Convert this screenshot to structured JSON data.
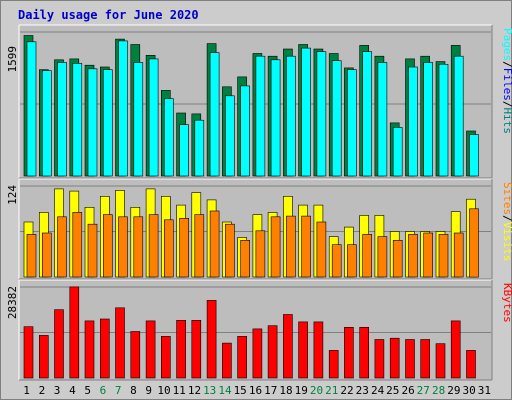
{
  "chart_data": {
    "type": "bar",
    "title": "Daily usage for June 2020",
    "categories": [
      "1",
      "2",
      "3",
      "4",
      "5",
      "6",
      "7",
      "8",
      "9",
      "10",
      "11",
      "12",
      "13",
      "14",
      "15",
      "16",
      "17",
      "18",
      "19",
      "20",
      "21",
      "22",
      "23",
      "24",
      "25",
      "26",
      "27",
      "28",
      "29",
      "30",
      "31"
    ],
    "weekend_days": [
      6,
      7,
      13,
      14,
      20,
      21,
      27,
      28
    ],
    "panels": [
      {
        "id": "hits-files-pages",
        "ytick": "1599",
        "ylim": [
          0,
          1599
        ],
        "legend": [
          "Pages",
          "/",
          "Files",
          "/",
          "Hits"
        ],
        "series": [
          {
            "name": "Hits",
            "color": "#008040",
            "values": [
              1560,
              1180,
              1290,
              1300,
              1230,
              1210,
              1520,
              1460,
              1340,
              950,
              700,
              690,
              1470,
              990,
              1100,
              1360,
              1330,
              1410,
              1460,
              1410,
              1360,
              1200,
              1450,
              1330,
              590,
              1300,
              1330,
              1270,
              1450,
              500,
              0
            ]
          },
          {
            "name": "Files",
            "color": "#0000ff",
            "values": [
              1490,
              1170,
              1260,
              1250,
              1190,
              1180,
              1500,
              1260,
              1300,
              860,
              570,
              620,
              1370,
              890,
              1000,
              1330,
              1290,
              1330,
              1420,
              1380,
              1280,
              1180,
              1380,
              1260,
              540,
              1210,
              1260,
              1240,
              1330,
              460,
              0
            ]
          },
          {
            "name": "Pages",
            "color": "#00ffff",
            "values": [
              1490,
              1170,
              1260,
              1250,
              1190,
              1180,
              1500,
              1260,
              1300,
              860,
              570,
              620,
              1370,
              890,
              1000,
              1330,
              1290,
              1330,
              1420,
              1380,
              1280,
              1180,
              1380,
              1260,
              540,
              1210,
              1260,
              1240,
              1330,
              460,
              0
            ]
          }
        ]
      },
      {
        "id": "visits-sites",
        "ytick": "124",
        "ylim": [
          0,
          124
        ],
        "legend": [
          "Sites",
          "/",
          "Visits"
        ],
        "series": [
          {
            "name": "Visits",
            "color": "#ffff00",
            "values": [
              75,
              88,
              120,
              117,
              95,
              110,
              118,
              95,
              120,
              110,
              98,
              115,
              105,
              75,
              54,
              85,
              88,
              110,
              98,
              98,
              55,
              68,
              84,
              84,
              62,
              62,
              62,
              62,
              89,
              106,
              0
            ]
          },
          {
            "name": "Sites",
            "color": "#ff8000",
            "values": [
              58,
              60,
              82,
              88,
              72,
              85,
              82,
              82,
              85,
              78,
              80,
              85,
              90,
              72,
              50,
              63,
              82,
              83,
              83,
              75,
              44,
              44,
              58,
              55,
              50,
              58,
              60,
              58,
              60,
              93,
              0
            ]
          }
        ]
      },
      {
        "id": "kbytes",
        "ytick": "28382",
        "ylim": [
          0,
          28382
        ],
        "legend": [
          "KBytes"
        ],
        "series": [
          {
            "name": "KBytes",
            "color": "#ff0000",
            "values": [
              16000,
              13300,
              21300,
              28400,
              17800,
              18400,
              21900,
              14500,
              17800,
              13000,
              18000,
              18000,
              24200,
              10900,
              13000,
              15300,
              16300,
              19800,
              17500,
              17500,
              8600,
              15800,
              15800,
              12000,
              12400,
              12000,
              12000,
              10700,
              17800,
              8600,
              0
            ]
          }
        ]
      }
    ]
  }
}
